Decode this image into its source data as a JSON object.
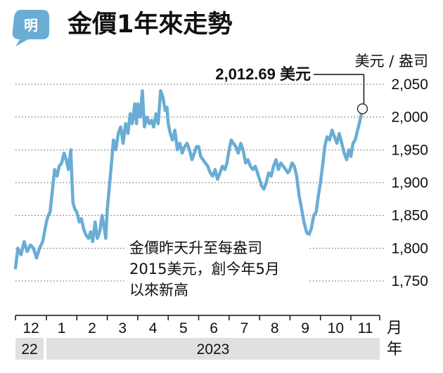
{
  "logo": {
    "text": "明"
  },
  "chart_data": {
    "type": "line",
    "title": "金價1年來走勢",
    "ylabel": "美元 / 盎司",
    "xunit": "月",
    "yearunit": "年",
    "ylim": [
      1725,
      2075
    ],
    "yticks": [
      {
        "value": 2050,
        "label": "2,050"
      },
      {
        "value": 2000,
        "label": "2,000"
      },
      {
        "value": 1950,
        "label": "1,950"
      },
      {
        "value": 1900,
        "label": "1,900"
      },
      {
        "value": 1850,
        "label": "1,850"
      },
      {
        "value": 1800,
        "label": "1,800"
      },
      {
        "value": 1750,
        "label": "1,750"
      }
    ],
    "xlabels": [
      "12",
      "1",
      "2",
      "3",
      "4",
      "5",
      "6",
      "7",
      "8",
      "9",
      "10",
      "11"
    ],
    "years": [
      "22",
      "2023"
    ],
    "callout": "2,012.69 美元",
    "annotation": [
      "金價昨天升至每盎司",
      "2015美元，創今年5月",
      "以來新高"
    ],
    "line_color": "#69add5",
    "grid": "dotted",
    "series": [
      {
        "x": [
          0,
          0.08,
          0.18,
          0.28,
          0.38,
          0.48,
          0.58,
          0.68,
          0.78,
          0.88
        ],
        "y": [
          1770,
          1800,
          1790,
          1810,
          1795,
          1805,
          1800,
          1785,
          1800,
          1810
        ]
      },
      {
        "x": [
          1,
          1.06,
          1.12,
          1.2,
          1.27,
          1.35,
          1.42,
          1.5,
          1.58,
          1.65,
          1.72,
          1.8,
          1.87,
          1.93
        ],
        "y": [
          1840,
          1850,
          1855,
          1890,
          1920,
          1910,
          1925,
          1930,
          1945,
          1935,
          1920,
          1950,
          1870,
          1860
        ]
      },
      {
        "x": [
          2,
          2.08,
          2.15,
          2.22,
          2.3,
          2.38,
          2.45,
          2.52,
          2.6,
          2.67,
          2.75,
          2.83,
          2.9,
          2.95
        ],
        "y": [
          1855,
          1840,
          1845,
          1830,
          1820,
          1815,
          1825,
          1810,
          1840,
          1815,
          1825,
          1850,
          1830,
          1815
        ]
      },
      {
        "x": [
          3,
          3.06,
          3.12,
          3.2,
          3.28,
          3.36,
          3.44,
          3.52,
          3.6,
          3.68,
          3.75,
          3.82,
          3.9,
          3.96
        ],
        "y": [
          1860,
          1890,
          1920,
          1965,
          1950,
          1975,
          1985,
          1960,
          1990,
          1975,
          2005,
          1990,
          2020,
          1990
        ]
      },
      {
        "x": [
          4,
          4.08,
          4.15,
          4.22,
          4.3,
          4.38,
          4.45,
          4.52,
          4.6,
          4.67,
          4.75,
          4.83,
          4.9,
          4.96
        ],
        "y": [
          2020,
          2000,
          2040,
          1985,
          2000,
          1990,
          1995,
          1985,
          2005,
          1990,
          2040,
          2030,
          2010,
          2015
        ]
      },
      {
        "x": [
          5,
          5.07,
          5.14,
          5.22,
          5.3,
          5.38,
          5.46,
          5.54,
          5.62,
          5.7,
          5.78,
          5.86,
          5.93
        ],
        "y": [
          1990,
          1975,
          1965,
          1980,
          1950,
          1960,
          1945,
          1955,
          1960,
          1950,
          1935,
          1945,
          1955
        ]
      },
      {
        "x": [
          6,
          6.07,
          6.14,
          6.22,
          6.3,
          6.38,
          6.46,
          6.54,
          6.62,
          6.7,
          6.78,
          6.86,
          6.93
        ],
        "y": [
          1955,
          1940,
          1935,
          1930,
          1925,
          1915,
          1910,
          1920,
          1905,
          1915,
          1925,
          1920,
          1930
        ]
      },
      {
        "x": [
          7,
          7.07,
          7.14,
          7.22,
          7.3,
          7.38,
          7.46,
          7.54,
          7.62,
          7.7,
          7.78,
          7.86,
          7.93
        ],
        "y": [
          1950,
          1965,
          1960,
          1955,
          1945,
          1960,
          1950,
          1930,
          1935,
          1925,
          1920,
          1925,
          1915
        ]
      },
      {
        "x": [
          8,
          8.07,
          8.14,
          8.22,
          8.3,
          8.38,
          8.46,
          8.54,
          8.62,
          8.7,
          8.78,
          8.86,
          8.93
        ],
        "y": [
          1905,
          1895,
          1890,
          1900,
          1915,
          1910,
          1925,
          1935,
          1920,
          1930,
          1925,
          1920,
          1915
        ]
      },
      {
        "x": [
          9,
          9.07,
          9.14,
          9.22,
          9.3,
          9.38,
          9.46,
          9.54,
          9.62,
          9.7,
          9.78,
          9.86,
          9.93
        ],
        "y": [
          1920,
          1930,
          1925,
          1910,
          1880,
          1860,
          1840,
          1825,
          1820,
          1830,
          1850,
          1855,
          1880
        ]
      },
      {
        "x": [
          10,
          10.07,
          10.14,
          10.22,
          10.3,
          10.38,
          10.46,
          10.54,
          10.62,
          10.7,
          10.78,
          10.86,
          10.93
        ],
        "y": [
          1900,
          1925,
          1955,
          1970,
          1965,
          1980,
          1970,
          1960,
          1975,
          1960,
          1945,
          1935,
          1950
        ]
      },
      {
        "x": [
          11,
          11.07,
          11.14,
          11.22,
          11.3,
          11.38
        ],
        "y": [
          1940,
          1960,
          1965,
          1980,
          1995,
          2012.69
        ]
      }
    ]
  }
}
